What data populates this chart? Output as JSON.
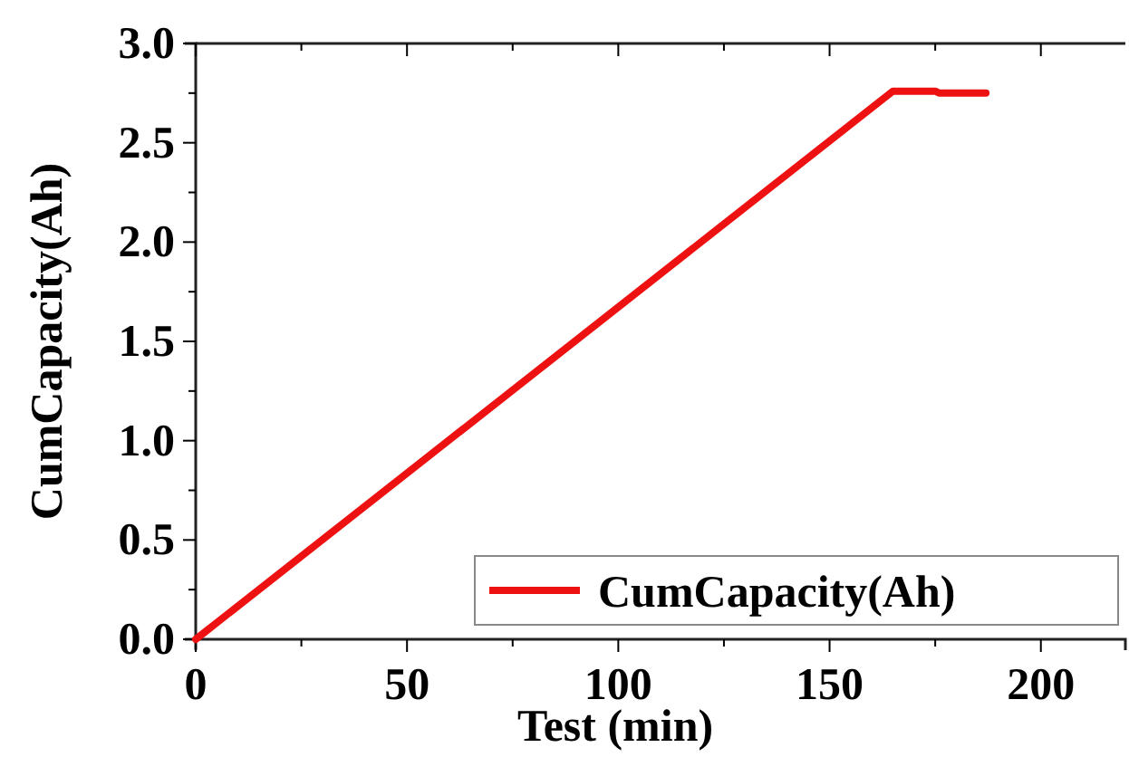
{
  "chart_data": {
    "type": "line",
    "xlabel": "Test  (min)",
    "ylabel": "CumCapacity(Ah)",
    "xlim": [
      0,
      220
    ],
    "ylim": [
      0,
      3
    ],
    "xticks": [
      0,
      {
        "value": 25,
        "label": null
      },
      50,
      {
        "value": 75,
        "label": null
      },
      100,
      {
        "value": 125,
        "label": null
      },
      150,
      {
        "value": 175,
        "label": null
      },
      200
    ],
    "yticks": [
      {
        "value": 0,
        "label": "0.0"
      },
      {
        "value": 0.25,
        "label": null
      },
      {
        "value": 0.5,
        "label": "0.5"
      },
      {
        "value": 0.75,
        "label": null
      },
      {
        "value": 1,
        "label": "1.0"
      },
      {
        "value": 1.25,
        "label": null
      },
      {
        "value": 1.5,
        "label": "1.5"
      },
      {
        "value": 1.75,
        "label": null
      },
      {
        "value": 2,
        "label": "2.0"
      },
      {
        "value": 2.25,
        "label": null
      },
      {
        "value": 2.5,
        "label": "2.5"
      },
      {
        "value": 2.75,
        "label": null
      },
      {
        "value": 3,
        "label": "3.0"
      }
    ],
    "series": [
      {
        "name": "CumCapacity(Ah)",
        "color": "#ee1111",
        "x": [
          0,
          165,
          175,
          176,
          187
        ],
        "values": [
          0,
          2.76,
          2.76,
          2.75,
          2.75
        ]
      }
    ],
    "legend": "bottom right",
    "grid": false,
    "marker": "none",
    "line_style": "solid"
  }
}
